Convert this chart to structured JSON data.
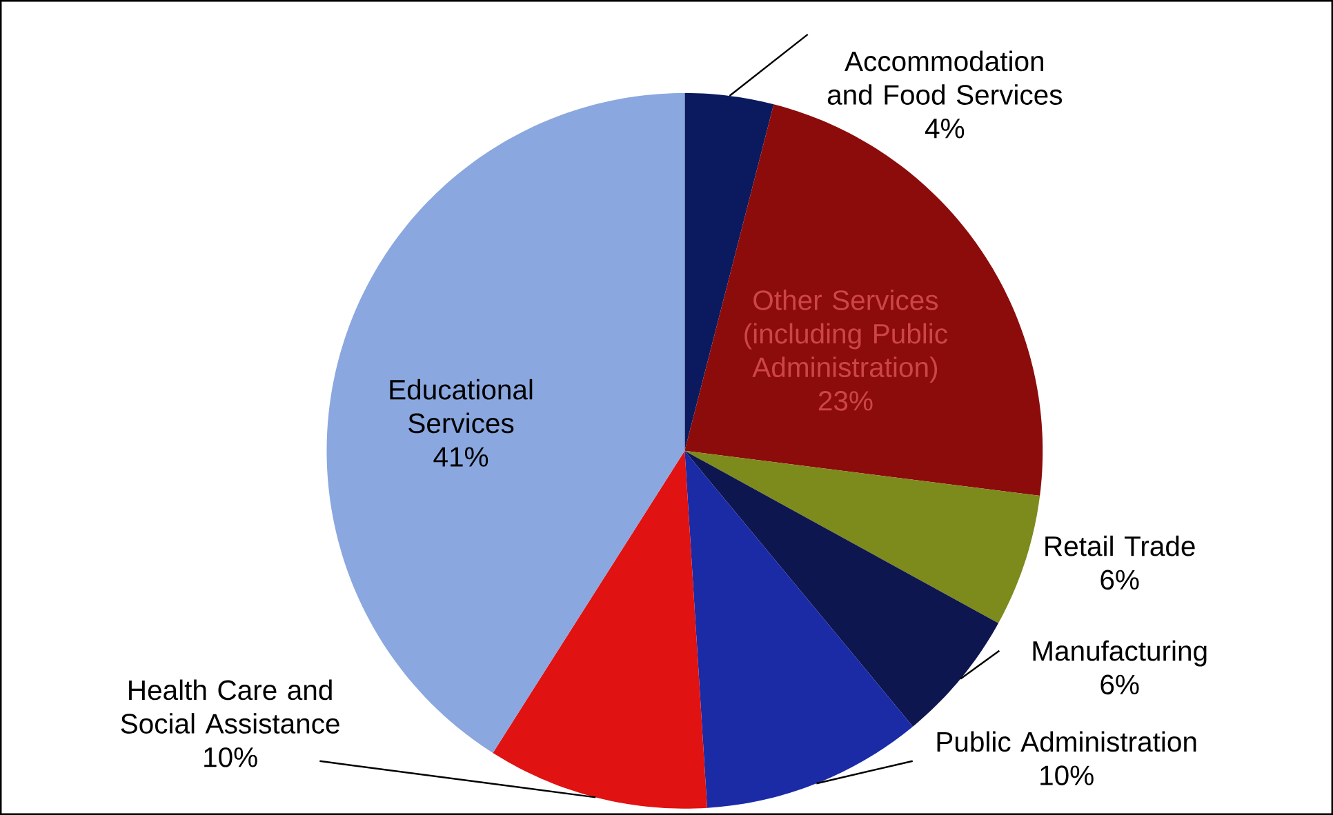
{
  "chart_data": {
    "type": "pie",
    "categories": [
      "Accommodation and Food Services",
      "Other Services (including Public Administration)",
      "Retail Trade",
      "Manufacturing",
      "Public Administration",
      "Health Care and Social Assistance",
      "Educational Services"
    ],
    "values": [
      4,
      23,
      6,
      6,
      10,
      10,
      41
    ],
    "colors": [
      "#0b1a5e",
      "#8c0b0b",
      "#7d8a1c",
      "#0d164f",
      "#1b2ba6",
      "#e01212",
      "#8aa7df"
    ],
    "value_labels": [
      "4%",
      "23%",
      "6%",
      "6%",
      "10%",
      "10%",
      "41%"
    ]
  }
}
